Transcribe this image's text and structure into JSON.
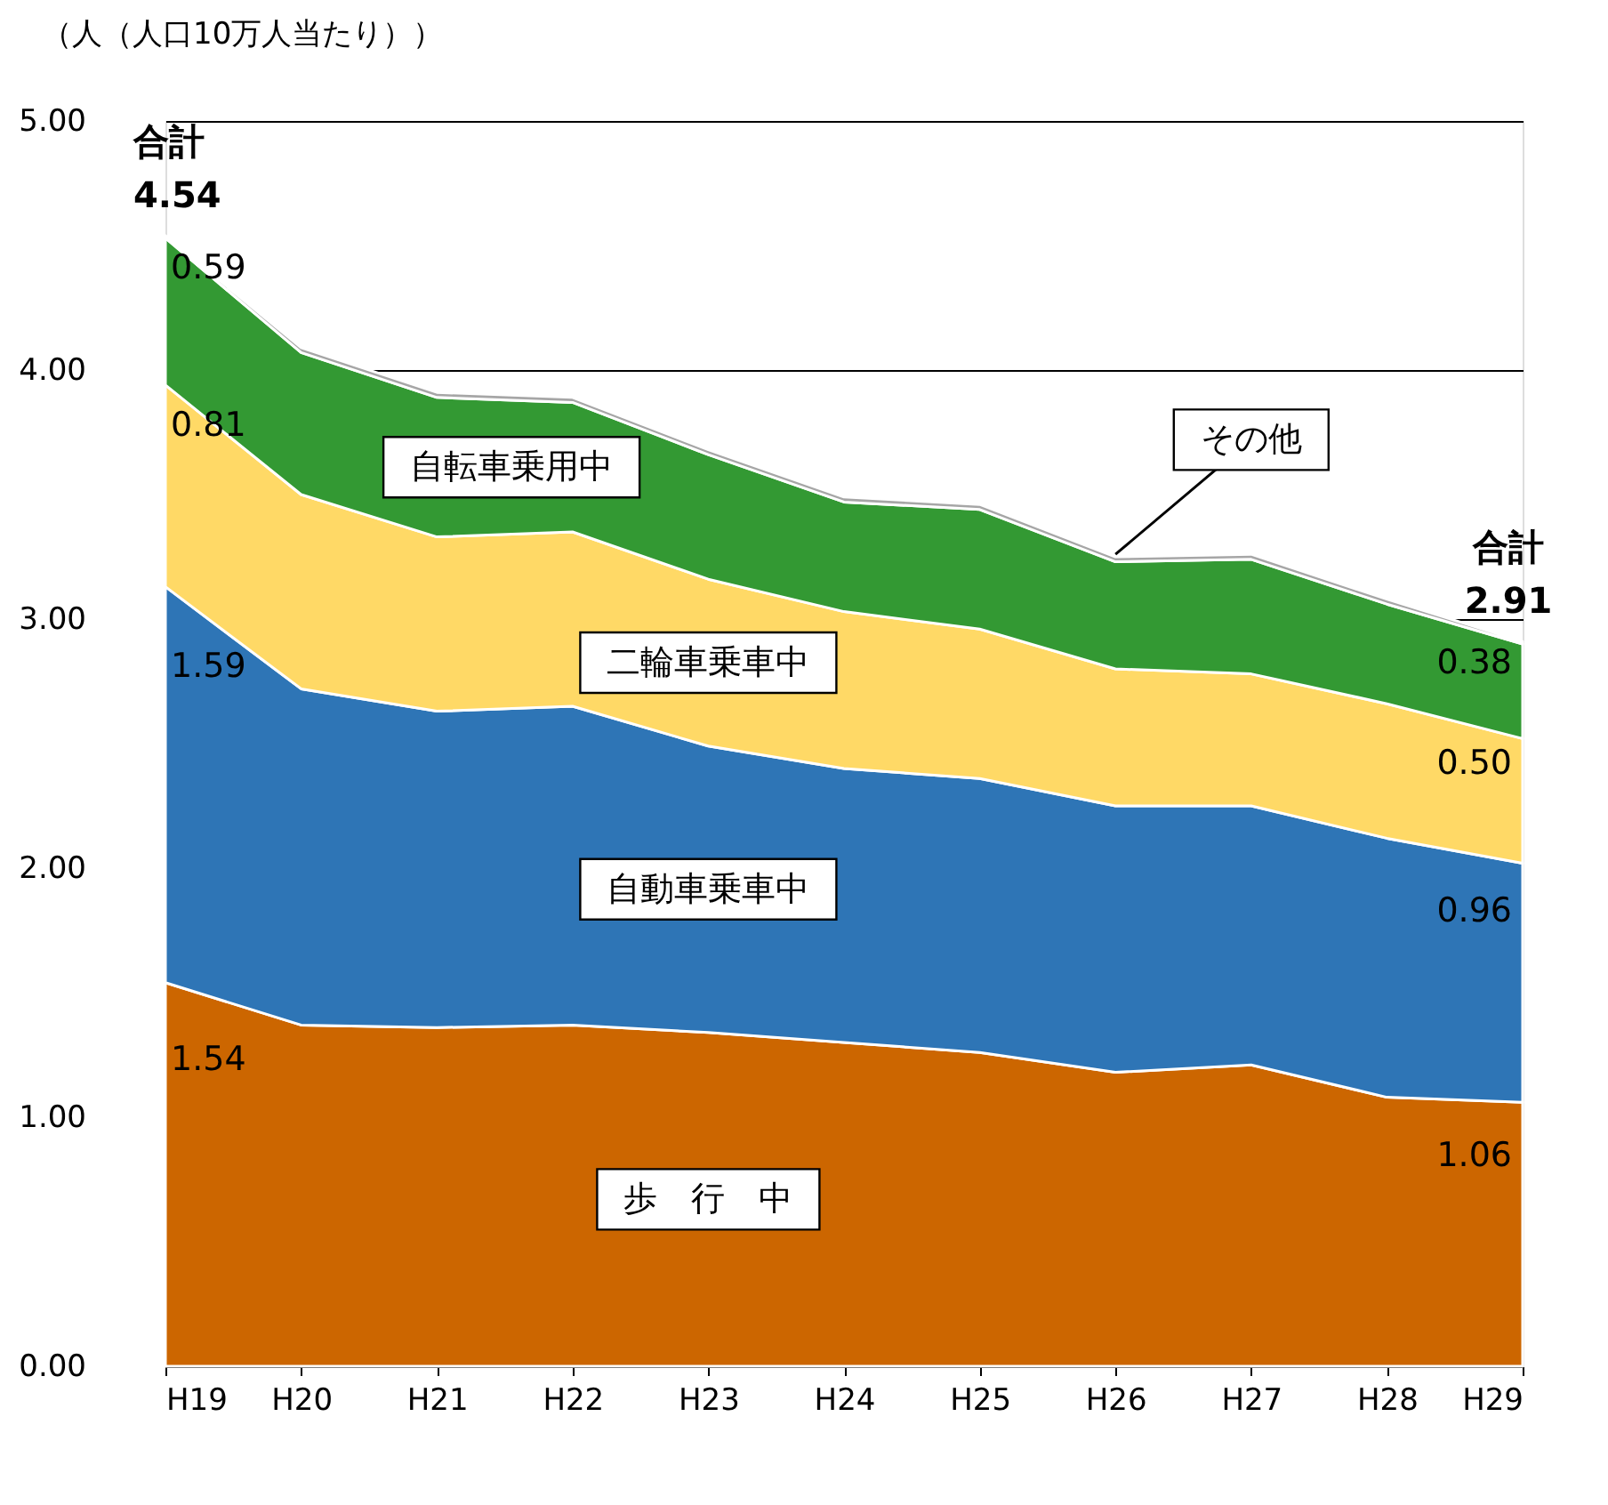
{
  "chart_data": {
    "type": "area",
    "stacked": true,
    "ylabel": "（人（人口10万人当たり））",
    "categories": [
      "H19",
      "H20",
      "H21",
      "H22",
      "H23",
      "H24",
      "H25",
      "H26",
      "H27",
      "H28",
      "H29"
    ],
    "series": [
      {
        "name": "歩　行　中",
        "color": "#cc6600",
        "values": [
          1.54,
          1.37,
          1.36,
          1.37,
          1.34,
          1.3,
          1.26,
          1.18,
          1.21,
          1.08,
          1.06
        ],
        "value_labels": [
          "1.54",
          null,
          null,
          null,
          null,
          null,
          null,
          null,
          null,
          null,
          "1.06"
        ]
      },
      {
        "name": "自動車乗車中",
        "color": "#2e75b6",
        "values": [
          1.59,
          1.35,
          1.27,
          1.28,
          1.15,
          1.1,
          1.1,
          1.07,
          1.04,
          1.04,
          0.96
        ],
        "value_labels": [
          "1.59",
          null,
          null,
          null,
          null,
          null,
          null,
          null,
          null,
          null,
          "0.96"
        ]
      },
      {
        "name": "二輪車乗車中",
        "color": "#ffd966",
        "values": [
          0.81,
          0.78,
          0.7,
          0.7,
          0.67,
          0.63,
          0.6,
          0.55,
          0.53,
          0.54,
          0.5
        ],
        "value_labels": [
          "0.81",
          null,
          null,
          null,
          null,
          null,
          null,
          null,
          null,
          null,
          "0.50"
        ]
      },
      {
        "name": "自転車乗用中",
        "color": "#339933",
        "values": [
          0.59,
          0.57,
          0.56,
          0.52,
          0.5,
          0.44,
          0.48,
          0.43,
          0.46,
          0.4,
          0.38
        ],
        "value_labels": [
          "0.59",
          null,
          null,
          null,
          null,
          null,
          null,
          null,
          null,
          null,
          "0.38"
        ]
      },
      {
        "name": "その他",
        "color": "#a6a6a6",
        "values": [
          0.01,
          0.02,
          0.02,
          0.02,
          0.02,
          0.02,
          0.02,
          0.02,
          0.02,
          0.02,
          0.01
        ]
      }
    ],
    "ylim": [
      0,
      5
    ],
    "yticks": [
      {
        "value": 0,
        "label": "0.00"
      },
      {
        "value": 1,
        "label": "1.00"
      },
      {
        "value": 2,
        "label": "2.00"
      },
      {
        "value": 3,
        "label": "3.00"
      },
      {
        "value": 4,
        "label": "4.00"
      },
      {
        "value": 5,
        "label": "5.00"
      }
    ],
    "grid": "y",
    "annotations": [
      {
        "text": "合計\n4.54",
        "x": "H19",
        "y": 4.54
      },
      {
        "text": "合計\n2.91",
        "x": "H29",
        "y": 2.91
      }
    ]
  }
}
